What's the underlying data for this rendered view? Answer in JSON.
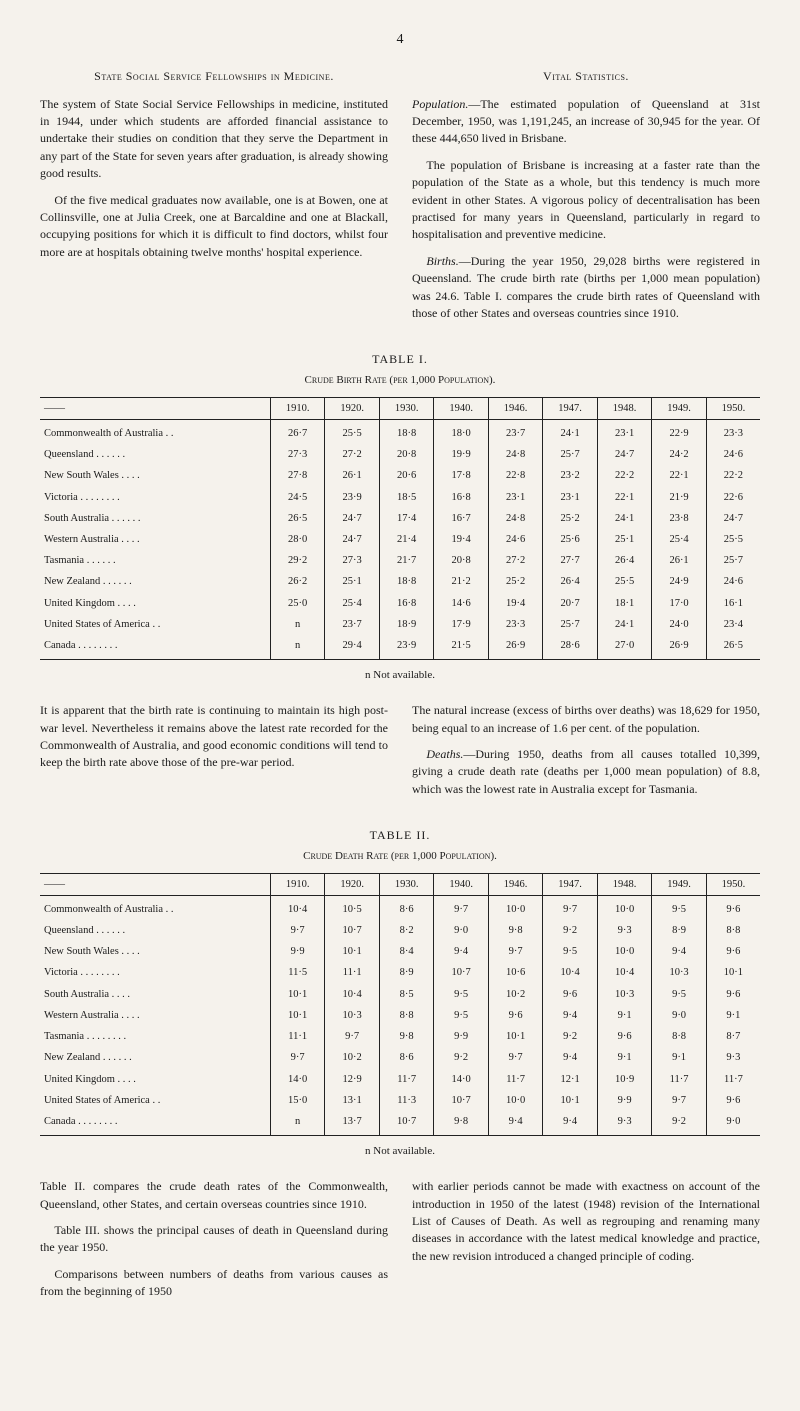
{
  "page_number": "4",
  "left_col": {
    "heading": "State Social Service Fellowships in Medicine.",
    "p1": "The system of State Social Service Fellowships in medicine, instituted in 1944, under which students are afforded financial assistance to undertake their studies on condition that they serve the Department in any part of the State for seven years after graduation, is already showing good results.",
    "p2": "Of the five medical graduates now available, one is at Bowen, one at Collinsville, one at Julia Creek, one at Barcaldine and one at Blackall, occupying positions for which it is difficult to find doctors, whilst four more are at hospitals obtaining twelve months' hospital experience."
  },
  "right_col": {
    "heading": "Vital Statistics.",
    "p1_label": "Population.",
    "p1": "—The estimated population of Queensland at 31st December, 1950, was 1,191,245, an increase of 30,945 for the year. Of these 444,650 lived in Brisbane.",
    "p2": "The population of Brisbane is increasing at a faster rate than the population of the State as a whole, but this tendency is much more evident in other States. A vigorous policy of decentralisation has been practised for many years in Queensland, particularly in regard to hospitalisation and preventive medicine.",
    "p3_label": "Births.",
    "p3": "—During the year 1950, 29,028 births were registered in Queensland. The crude birth rate (births per 1,000 mean population) was 24.6. Table I. compares the crude birth rates of Queensland with those of other States and overseas countries since 1910."
  },
  "table1": {
    "caption": "TABLE I.",
    "subcaption": "Crude Birth Rate (per 1,000 Population).",
    "years": [
      "1910.",
      "1920.",
      "1930.",
      "1940.",
      "1946.",
      "1947.",
      "1948.",
      "1949.",
      "1950."
    ],
    "dash": "——",
    "rows": [
      {
        "label": "Commonwealth of Australia  . .",
        "v": [
          "26·7",
          "25·5",
          "18·8",
          "18·0",
          "23·7",
          "24·1",
          "23·1",
          "22·9",
          "23·3"
        ]
      },
      {
        "label": "Queensland      . .      . .      . .",
        "v": [
          "27·3",
          "27·2",
          "20·8",
          "19·9",
          "24·8",
          "25·7",
          "24·7",
          "24·2",
          "24·6"
        ]
      },
      {
        "label": "New South Wales       . .      . .",
        "v": [
          "27·8",
          "26·1",
          "20·6",
          "17·8",
          "22·8",
          "23·2",
          "22·2",
          "22·1",
          "22·2"
        ]
      },
      {
        "label": "Victoria  . .      . .      . .      . .",
        "v": [
          "24·5",
          "23·9",
          "18·5",
          "16·8",
          "23·1",
          "23·1",
          "22·1",
          "21·9",
          "22·6"
        ]
      },
      {
        "label": "South Australia  . .      . .      . .",
        "v": [
          "26·5",
          "24·7",
          "17·4",
          "16·7",
          "24·8",
          "25·2",
          "24·1",
          "23·8",
          "24·7"
        ]
      },
      {
        "label": "Western Australia      . .      . .",
        "v": [
          "28·0",
          "24·7",
          "21·4",
          "19·4",
          "24·6",
          "25·6",
          "25·1",
          "25·4",
          "25·5"
        ]
      },
      {
        "label": "Tasmania         . .      . .      . .",
        "v": [
          "29·2",
          "27·3",
          "21·7",
          "20·8",
          "27·2",
          "27·7",
          "26·4",
          "26·1",
          "25·7"
        ]
      },
      {
        "label": "New Zealand      . .      . .      . .",
        "v": [
          "26·2",
          "25·1",
          "18·8",
          "21·2",
          "25·2",
          "26·4",
          "25·5",
          "24·9",
          "24·6"
        ]
      },
      {
        "label": "United Kingdom      . .      . .",
        "v": [
          "25·0",
          "25·4",
          "16·8",
          "14·6",
          "19·4",
          "20·7",
          "18·1",
          "17·0",
          "16·1"
        ]
      },
      {
        "label": "United States of America     . .",
        "v": [
          "n",
          "23·7",
          "18·9",
          "17·9",
          "23·3",
          "25·7",
          "24·1",
          "24·0",
          "23·4"
        ]
      },
      {
        "label": "Canada  . .      . .      . .      . .",
        "v": [
          "n",
          "29·4",
          "23·9",
          "21·5",
          "26·9",
          "28·6",
          "27·0",
          "26·9",
          "26·5"
        ]
      }
    ],
    "note": "n Not available."
  },
  "mid_left": {
    "p1": "It is apparent that the birth rate is continuing to maintain its high post-war level. Nevertheless it remains above the latest rate recorded for the Commonwealth of Australia, and good economic conditions will tend to keep the birth rate above those of the pre-war period."
  },
  "mid_right": {
    "p1": "The natural increase (excess of births over deaths) was 18,629 for 1950, being equal to an increase of 1.6 per cent. of the population.",
    "p2_label": "Deaths.",
    "p2": "—During 1950, deaths from all causes totalled 10,399, giving a crude death rate (deaths per 1,000 mean population) of 8.8, which was the lowest rate in Australia except for Tasmania."
  },
  "table2": {
    "caption": "TABLE II.",
    "subcaption": "Crude Death Rate (per 1,000 Population).",
    "years": [
      "1910.",
      "1920.",
      "1930.",
      "1940.",
      "1946.",
      "1947.",
      "1948.",
      "1949.",
      "1950."
    ],
    "dash": "——",
    "rows": [
      {
        "label": "Commonwealth of Australia  . .",
        "v": [
          "10·4",
          "10·5",
          "8·6",
          "9·7",
          "10·0",
          "9·7",
          "10·0",
          "9·5",
          "9·6"
        ]
      },
      {
        "label": "Queensland      . .      . .      . .",
        "v": [
          "9·7",
          "10·7",
          "8·2",
          "9·0",
          "9·8",
          "9·2",
          "9·3",
          "8·9",
          "8·8"
        ]
      },
      {
        "label": "New South Wales       . .      . .",
        "v": [
          "9·9",
          "10·1",
          "8·4",
          "9·4",
          "9·7",
          "9·5",
          "10·0",
          "9·4",
          "9·6"
        ]
      },
      {
        "label": "Victoria  . .      . .      . .      . .",
        "v": [
          "11·5",
          "11·1",
          "8·9",
          "10·7",
          "10·6",
          "10·4",
          "10·4",
          "10·3",
          "10·1"
        ]
      },
      {
        "label": "South Australia      . .      . .",
        "v": [
          "10·1",
          "10·4",
          "8·5",
          "9·5",
          "10·2",
          "9·6",
          "10·3",
          "9·5",
          "9·6"
        ]
      },
      {
        "label": "Western Australia      . .      . .",
        "v": [
          "10·1",
          "10·3",
          "8·8",
          "9·5",
          "9·6",
          "9·4",
          "9·1",
          "9·0",
          "9·1"
        ]
      },
      {
        "label": "Tasmania . .  . .      . .      . .",
        "v": [
          "11·1",
          "9·7",
          "9·8",
          "9·9",
          "10·1",
          "9·2",
          "9·6",
          "8·8",
          "8·7"
        ]
      },
      {
        "label": "New Zealand  . .      . .      . .",
        "v": [
          "9·7",
          "10·2",
          "8·6",
          "9·2",
          "9·7",
          "9·4",
          "9·1",
          "9·1",
          "9·3"
        ]
      },
      {
        "label": "United Kingdom       . .      . .",
        "v": [
          "14·0",
          "12·9",
          "11·7",
          "14·0",
          "11·7",
          "12·1",
          "10·9",
          "11·7",
          "11·7"
        ]
      },
      {
        "label": "United States of America     . .",
        "v": [
          "15·0",
          "13·1",
          "11·3",
          "10·7",
          "10·0",
          "10·1",
          "9·9",
          "9·7",
          "9·6"
        ]
      },
      {
        "label": "Canada  . .      . .      . .      . .",
        "v": [
          "n",
          "13·7",
          "10·7",
          "9·8",
          "9·4",
          "9·4",
          "9·3",
          "9·2",
          "9·0"
        ]
      }
    ],
    "note": "n Not available."
  },
  "bottom_left": {
    "p1": "Table II. compares the crude death rates of the Commonwealth, Queensland, other States, and certain overseas countries since 1910.",
    "p2": "Table III. shows the principal causes of death in Queensland during the year 1950.",
    "p3": "Comparisons between numbers of deaths from various causes as from the beginning of 1950"
  },
  "bottom_right": {
    "p1": "with earlier periods cannot be made with exactness on account of the introduction in 1950 of the latest (1948) revision of the International List of Causes of Death. As well as regrouping and renaming many diseases in accordance with the latest medical knowledge and practice, the new revision introduced a changed principle of coding."
  }
}
